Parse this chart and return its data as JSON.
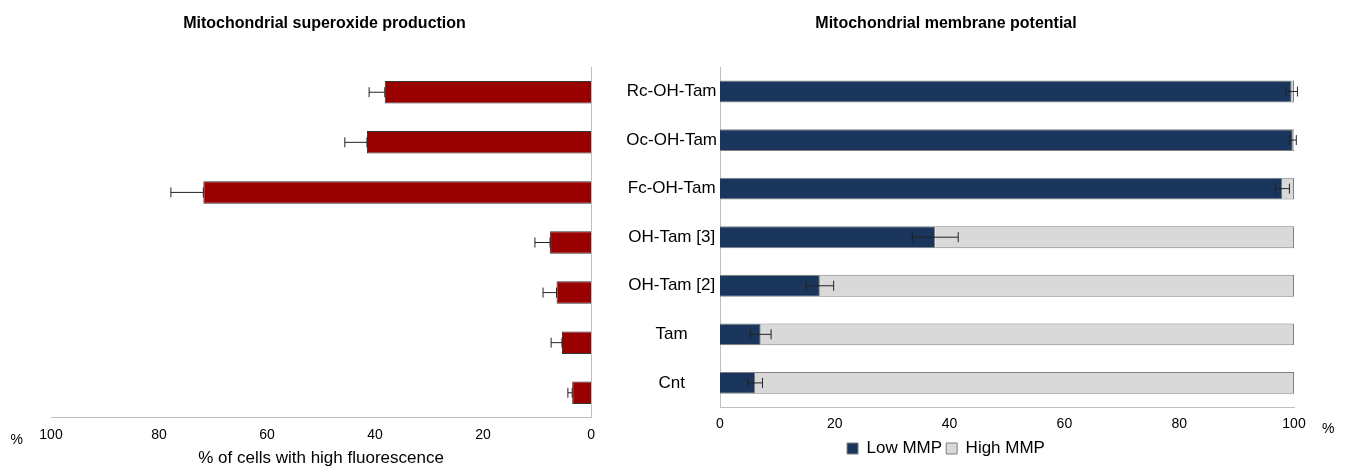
{
  "chart_data": [
    {
      "type": "bar",
      "orientation": "horizontal",
      "title": "Mitochondrial superoxide production",
      "xlabel": "% of cells with high fluorescence",
      "categories": [
        null,
        null,
        null,
        null,
        null,
        null,
        null
      ],
      "series": [
        {
          "color": "#990000",
          "values": [
            38.2,
            41.5,
            71.8,
            7.6,
            6.4,
            5.4,
            3.5
          ],
          "errors": [
            [
              38.2,
              41.1
            ],
            [
              41.5,
              45.6
            ],
            [
              71.8,
              77.8
            ],
            [
              7.6,
              10.4
            ],
            [
              6.4,
              8.9
            ],
            [
              5.4,
              7.4
            ],
            [
              3.5,
              4.3
            ]
          ]
        }
      ],
      "xlim": [
        100,
        0
      ],
      "xticks": [
        100,
        80,
        60,
        40,
        20,
        0
      ],
      "annotations": [
        "%"
      ],
      "tick_labels": "x",
      "grid": false,
      "legend": false
    },
    {
      "type": "bar",
      "orientation": "horizontal",
      "stacked": true,
      "title": "Mitochondrial membrane potential",
      "categories": [
        "Rc-OH-Tam",
        "Oc-OH-Tam",
        "Fc-OH-Tam",
        "OH-Tam [3]",
        "OH-Tam [2]",
        "Tam",
        "Cnt"
      ],
      "series": [
        {
          "name": "Low MMP",
          "color": "#1b365d",
          "values": [
            99.6,
            99.8,
            98.0,
            37.5,
            17.4,
            7.1,
            6.1
          ],
          "errors": [
            1,
            0.6,
            1.2,
            4,
            2.4,
            1.8,
            1.3
          ]
        },
        {
          "name": "High MMP",
          "color": "#d9d9d9",
          "values": [
            0.4,
            0.2,
            2.0,
            62.5,
            82.6,
            92.9,
            93.9
          ]
        }
      ],
      "xlim": [
        0,
        100
      ],
      "xticks": [
        0,
        20,
        40,
        60,
        80,
        100
      ],
      "annotations": [
        "%"
      ],
      "grid": false,
      "legend": "bottom"
    }
  ]
}
